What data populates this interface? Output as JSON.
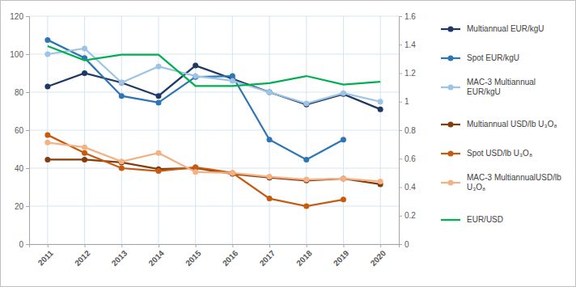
{
  "chart_data": {
    "type": "line",
    "categories": [
      "2011",
      "2012",
      "2013",
      "2014",
      "2015",
      "2016",
      "2017",
      "2018",
      "2019",
      "2020"
    ],
    "ylim": [
      0,
      120
    ],
    "yticks": [
      0,
      20,
      40,
      60,
      80,
      100,
      120
    ],
    "y2lim": [
      0,
      1.6
    ],
    "y2ticks": [
      0,
      0.2,
      0.4,
      0.6,
      0.8,
      1,
      1.2,
      1.4,
      1.6
    ],
    "grid": true,
    "legend": "right",
    "series": [
      {
        "name": "Multiannual EUR/kgU",
        "color": "#1f3864",
        "marker": "circle",
        "values": [
          83,
          90,
          85,
          78,
          94,
          87,
          80,
          73.5,
          79,
          71
        ]
      },
      {
        "name": "Spot EUR/kgU",
        "color": "#2e75b6",
        "marker": "circle",
        "values": [
          107.5,
          98,
          78,
          74.5,
          88,
          88.5,
          55,
          44.5,
          55,
          null
        ]
      },
      {
        "name": "MAC-3 Multiannual EUR/kgU",
        "color": "#9dc3e6",
        "marker": "circle",
        "values": [
          100,
          103,
          85,
          93.5,
          88.5,
          86,
          80,
          74,
          79.5,
          75
        ]
      },
      {
        "name": "Multiannual USD/lb U₃O₈",
        "color": "#843c0c",
        "marker": "circle",
        "values": [
          44.5,
          44.5,
          43,
          39.5,
          40,
          37,
          35,
          33.5,
          34.5,
          31.5
        ]
      },
      {
        "name": "Spot USD/lb U₃O₈",
        "color": "#c55a11",
        "marker": "circle",
        "values": [
          57.5,
          48,
          40,
          38.5,
          40.5,
          37.5,
          24,
          20,
          23.5,
          null
        ]
      },
      {
        "name": "MAC-3 MultiannualUSD/lb U₃O₈",
        "color": "#f4b183",
        "marker": "circle",
        "values": [
          53.5,
          51,
          43.5,
          48,
          38,
          37.5,
          35.5,
          34,
          34.5,
          33
        ]
      },
      {
        "name": "EUR/USD",
        "color": "#00b050",
        "marker": "none",
        "axis": "y2",
        "values": [
          1.39,
          1.29,
          1.33,
          1.33,
          1.11,
          1.11,
          1.13,
          1.18,
          1.12,
          1.14
        ]
      }
    ]
  }
}
